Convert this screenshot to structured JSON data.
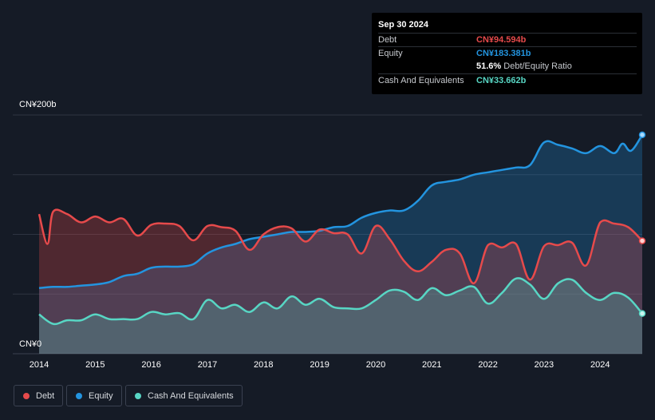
{
  "chart_data": {
    "type": "area",
    "ylim": [
      0,
      200
    ],
    "y_tick_labels": [
      "CN¥0",
      "CN¥200b"
    ],
    "x_tick_labels": [
      "2014",
      "2015",
      "2016",
      "2017",
      "2018",
      "2019",
      "2020",
      "2021",
      "2022",
      "2023",
      "2024"
    ],
    "x_range": [
      2014.0,
      2024.75
    ],
    "series": [
      {
        "name": "Debt",
        "color": "#e64a4b",
        "x": [
          2014.0,
          2014.15,
          2014.25,
          2014.5,
          2014.75,
          2015.0,
          2015.25,
          2015.5,
          2015.75,
          2016.0,
          2016.25,
          2016.5,
          2016.75,
          2017.0,
          2017.25,
          2017.5,
          2017.75,
          2018.0,
          2018.25,
          2018.5,
          2018.75,
          2019.0,
          2019.25,
          2019.5,
          2019.75,
          2020.0,
          2020.25,
          2020.5,
          2020.75,
          2021.0,
          2021.25,
          2021.5,
          2021.75,
          2022.0,
          2022.25,
          2022.5,
          2022.75,
          2023.0,
          2023.25,
          2023.5,
          2023.75,
          2024.0,
          2024.25,
          2024.5,
          2024.75
        ],
        "values": [
          117,
          92,
          119,
          117,
          110,
          115,
          110,
          113,
          99,
          108,
          109,
          107,
          95,
          107,
          106,
          103,
          87,
          100,
          106,
          105,
          94,
          104,
          101,
          100,
          84,
          107,
          96,
          78,
          69,
          77,
          87,
          84,
          59,
          91,
          89,
          92,
          62,
          90,
          91,
          93,
          74,
          110,
          109,
          106,
          94.594
        ]
      },
      {
        "name": "Equity",
        "color": "#2394df",
        "x": [
          2014.0,
          2014.25,
          2014.5,
          2014.75,
          2015.0,
          2015.25,
          2015.5,
          2015.75,
          2016.0,
          2016.25,
          2016.5,
          2016.75,
          2017.0,
          2017.25,
          2017.5,
          2017.75,
          2018.0,
          2018.25,
          2018.5,
          2018.75,
          2019.0,
          2019.25,
          2019.5,
          2019.75,
          2020.0,
          2020.25,
          2020.5,
          2020.75,
          2021.0,
          2021.25,
          2021.5,
          2021.75,
          2022.0,
          2022.25,
          2022.5,
          2022.75,
          2023.0,
          2023.25,
          2023.5,
          2023.75,
          2024.0,
          2024.25,
          2024.4,
          2024.55,
          2024.75
        ],
        "values": [
          55,
          56,
          56,
          57,
          58,
          60,
          65,
          67,
          72,
          73,
          73,
          75,
          84,
          89,
          92,
          96,
          98,
          100,
          102,
          102,
          103,
          106,
          107,
          114,
          118,
          120,
          120,
          128,
          141,
          144,
          146,
          150,
          152,
          154,
          156,
          158,
          177,
          175,
          172,
          168,
          174,
          168,
          176,
          170,
          183.381
        ]
      },
      {
        "name": "Cash And Equivalents",
        "color": "#58d6c4",
        "x": [
          2014.0,
          2014.25,
          2014.5,
          2014.75,
          2015.0,
          2015.25,
          2015.5,
          2015.75,
          2016.0,
          2016.25,
          2016.5,
          2016.75,
          2017.0,
          2017.25,
          2017.5,
          2017.75,
          2018.0,
          2018.25,
          2018.5,
          2018.75,
          2019.0,
          2019.25,
          2019.5,
          2019.75,
          2020.0,
          2020.25,
          2020.5,
          2020.75,
          2021.0,
          2021.25,
          2021.5,
          2021.75,
          2022.0,
          2022.25,
          2022.5,
          2022.75,
          2023.0,
          2023.25,
          2023.5,
          2023.75,
          2024.0,
          2024.25,
          2024.5,
          2024.75
        ],
        "values": [
          33,
          25,
          28,
          28,
          33,
          29,
          29,
          29,
          35,
          33,
          34,
          29,
          45,
          38,
          41,
          35,
          43,
          38,
          48,
          41,
          46,
          39,
          38,
          38,
          45,
          53,
          52,
          45,
          55,
          49,
          53,
          56,
          42,
          51,
          63,
          58,
          46,
          59,
          62,
          51,
          45,
          51,
          47,
          33.662
        ]
      }
    ]
  },
  "tooltip": {
    "date": "Sep 30 2024",
    "debt_label": "Debt",
    "debt_value": "CN¥94.594b",
    "equity_label": "Equity",
    "equity_value": "CN¥183.381b",
    "ratio_value": "51.6%",
    "ratio_label": "Debt/Equity Ratio",
    "cash_label": "Cash And Equivalents",
    "cash_value": "CN¥33.662b"
  },
  "legend": {
    "debt": "Debt",
    "equity": "Equity",
    "cash": "Cash And Equivalents"
  }
}
